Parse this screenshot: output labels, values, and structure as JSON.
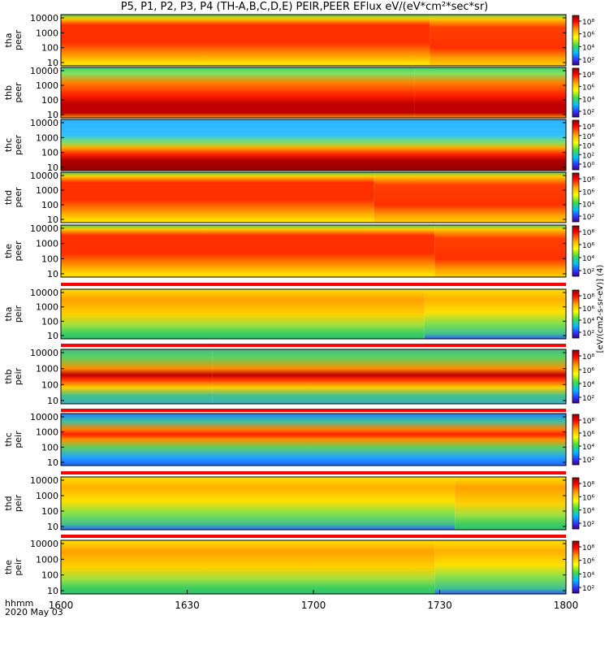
{
  "title": "P5, P1, P2, P3, P4 (TH-A,B,C,D,E) PEIR,PEER EFlux eV/(eV*cm²*sec*sr)",
  "time_axis": {
    "units_label": "hhmm",
    "date_label": "2020 May 03",
    "ticks": [
      "1600",
      "1630",
      "1700",
      "1730",
      "1800"
    ]
  },
  "colorbar_units": "[eV/(cm2-s-sr-eV)] (4)",
  "colors": {
    "saturated": "#8b0000",
    "flag_bar": "#ff0000"
  },
  "chart_data": [
    {
      "type": "heatmap",
      "probe": "tha",
      "species": "peer",
      "ylabel": [
        "tha",
        "peer"
      ],
      "yticks": [
        "10000",
        "1000",
        "100",
        "10"
      ],
      "cbar_ticks": [
        "10⁸",
        "10⁶",
        "10⁴",
        "10²"
      ],
      "transition_fraction": 0.73
    },
    {
      "type": "heatmap",
      "probe": "thb",
      "species": "peer",
      "ylabel": [
        "thb",
        "peer"
      ],
      "yticks": [
        "10000",
        "1000",
        "100",
        "10"
      ],
      "cbar_ticks": [
        "10⁸",
        "10⁶",
        "10⁴",
        "10²"
      ],
      "transition_fraction": 0.7
    },
    {
      "type": "heatmap",
      "probe": "thc",
      "species": "peer",
      "ylabel": [
        "thc",
        "peer"
      ],
      "yticks": [
        "10000",
        "1000",
        "100",
        "10"
      ],
      "cbar_ticks": [
        "10⁸",
        "10⁶",
        "10⁴",
        "10²",
        "10⁰"
      ],
      "transition_fraction": 0.5
    },
    {
      "type": "heatmap",
      "probe": "thd",
      "species": "peer",
      "ylabel": [
        "thd",
        "peer"
      ],
      "yticks": [
        "10000",
        "1000",
        "100",
        "10"
      ],
      "cbar_ticks": [
        "10⁸",
        "10⁶",
        "10⁴",
        "10²"
      ],
      "transition_fraction": 0.62
    },
    {
      "type": "heatmap",
      "probe": "the",
      "species": "peer",
      "ylabel": [
        "the",
        "peer"
      ],
      "yticks": [
        "10000",
        "1000",
        "100",
        "10"
      ],
      "cbar_ticks": [
        "10⁸",
        "10⁶",
        "10⁴",
        "10²"
      ],
      "transition_fraction": 0.74
    },
    {
      "type": "heatmap",
      "probe": "tha",
      "species": "peir",
      "ylabel": [
        "tha",
        "peir"
      ],
      "yticks": [
        "10000",
        "1000",
        "100",
        "10"
      ],
      "cbar_ticks": [
        "10⁸",
        "10⁶",
        "10⁴",
        "10²"
      ],
      "transition_fraction": 0.72
    },
    {
      "type": "heatmap",
      "probe": "thb",
      "species": "peir",
      "ylabel": [
        "thb",
        "peir"
      ],
      "yticks": [
        "10000",
        "1000",
        "100",
        "10"
      ],
      "cbar_ticks": [
        "10⁸",
        "10⁶",
        "10⁴",
        "10²"
      ],
      "transition_fraction": 0.3
    },
    {
      "type": "heatmap",
      "probe": "thc",
      "species": "peir",
      "ylabel": [
        "thc",
        "peir"
      ],
      "yticks": [
        "10000",
        "1000",
        "100",
        "10"
      ],
      "cbar_ticks": [
        "10⁸",
        "10⁶",
        "10⁴",
        "10²"
      ],
      "transition_fraction": 0.5
    },
    {
      "type": "heatmap",
      "probe": "thd",
      "species": "peir",
      "ylabel": [
        "thd",
        "peir"
      ],
      "yticks": [
        "10000",
        "1000",
        "100",
        "10"
      ],
      "cbar_ticks": [
        "10⁸",
        "10⁶",
        "10⁴",
        "10²"
      ],
      "transition_fraction": 0.78
    },
    {
      "type": "heatmap",
      "probe": "the",
      "species": "peir",
      "ylabel": [
        "the",
        "peir"
      ],
      "yticks": [
        "10000",
        "1000",
        "100",
        "10"
      ],
      "cbar_ticks": [
        "10⁸",
        "10⁶",
        "10⁴",
        "10²"
      ],
      "transition_fraction": 0.74
    }
  ]
}
